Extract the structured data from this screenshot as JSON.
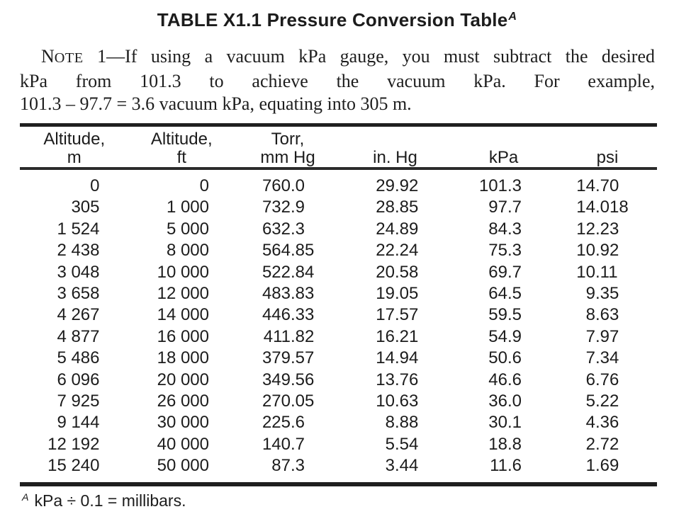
{
  "title": {
    "text": "TABLE X1.1 Pressure Conversion Table",
    "superscript": "A"
  },
  "note": {
    "line1_cap": "N",
    "line1_smallcaps": "OTE",
    "line1_rest": " 1—If using a vacuum kPa gauge, you must subtract the desired",
    "line2": "kPa from 101.3 to achieve the vacuum kPa. For example,",
    "line3": "101.3 – 97.7 = 3.6 vacuum kPa, equating into 305 m."
  },
  "table": {
    "columns": [
      {
        "label_line1": "Altitude,",
        "label_line2": "m"
      },
      {
        "label_line1": "Altitude,",
        "label_line2": "ft"
      },
      {
        "label_line1": "Torr,",
        "label_line2": "mm Hg"
      },
      {
        "label_line1": "",
        "label_line2": "in. Hg"
      },
      {
        "label_line1": "",
        "label_line2": "kPa"
      },
      {
        "label_line1": "",
        "label_line2": "psi"
      }
    ],
    "rows": [
      [
        "0",
        "0",
        "760.0",
        "29.92",
        "101.3",
        "14.70"
      ],
      [
        "305",
        "1 000",
        "732.9",
        "28.85",
        "97.7",
        "14.018"
      ],
      [
        "1 524",
        "5 000",
        "632.3",
        "24.89",
        "84.3",
        "12.23"
      ],
      [
        "2 438",
        "8 000",
        "564.85",
        "22.24",
        "75.3",
        "10.92"
      ],
      [
        "3 048",
        "10 000",
        "522.84",
        "20.58",
        "69.7",
        "10.11"
      ],
      [
        "3 658",
        "12 000",
        "483.83",
        "19.05",
        "64.5",
        "9.35"
      ],
      [
        "4 267",
        "14 000",
        "446.33",
        "17.57",
        "59.5",
        "8.63"
      ],
      [
        "4 877",
        "16 000",
        "411.82",
        "16.21",
        "54.9",
        "7.97"
      ],
      [
        "5 486",
        "18 000",
        "379.57",
        "14.94",
        "50.6",
        "7.34"
      ],
      [
        "6 096",
        "20 000",
        "349.56",
        "13.76",
        "46.6",
        "6.76"
      ],
      [
        "7 925",
        "26 000",
        "270.05",
        "10.63",
        "36.0",
        "5.22"
      ],
      [
        "9 144",
        "30 000",
        "225.6",
        "8.88",
        "30.1",
        "4.36"
      ],
      [
        "12 192",
        "40 000",
        "140.7",
        "5.54",
        "18.8",
        "2.72"
      ],
      [
        "15 240",
        "50 000",
        "87.3",
        "3.44",
        "11.6",
        "1.69"
      ]
    ]
  },
  "footnote": {
    "superscript": "A",
    "text": "kPa ÷ 0.1 = millibars."
  },
  "colors": {
    "text": "#1c1c1c",
    "rule": "#1f1f1f",
    "background": "#ffffff"
  }
}
